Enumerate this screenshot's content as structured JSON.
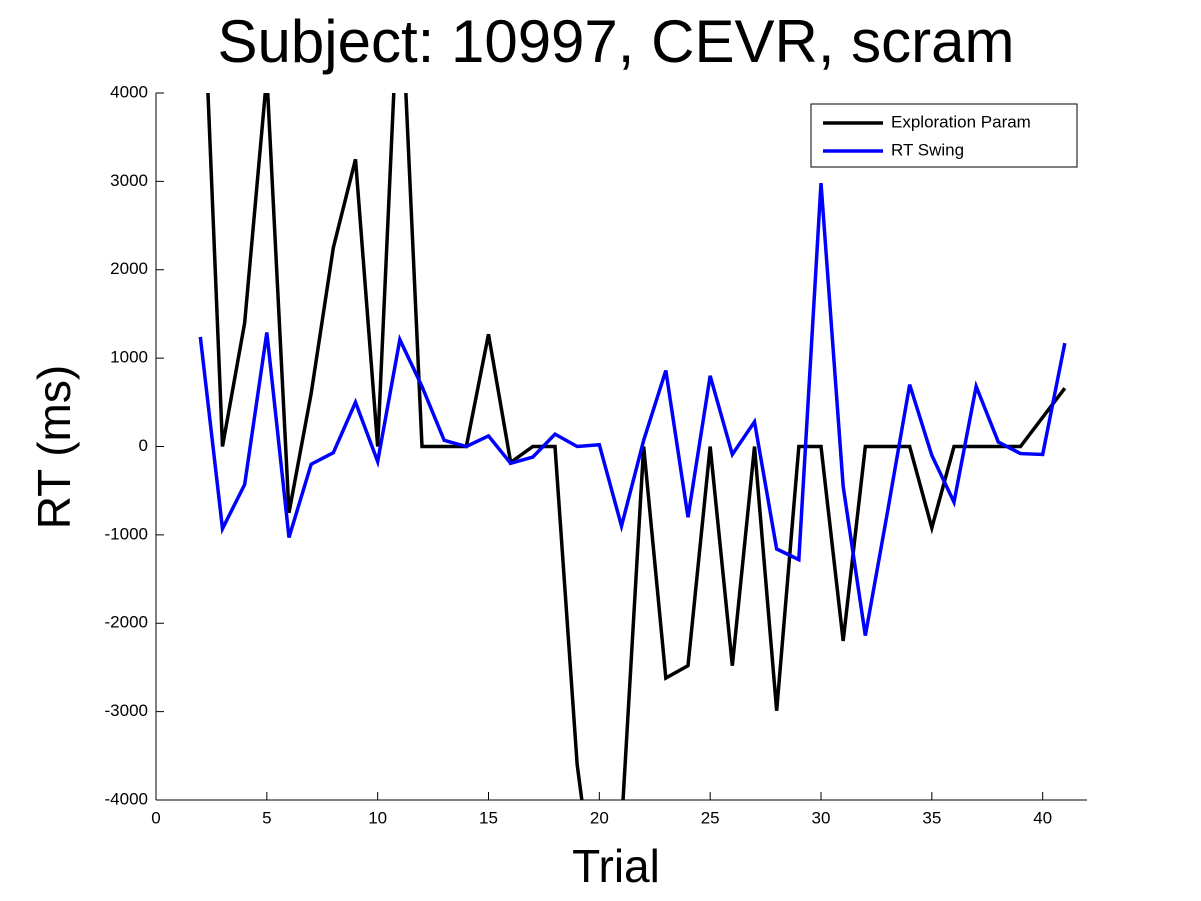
{
  "chart_data": {
    "type": "line",
    "title": "Subject: 10997, CEVR, scram",
    "x_label": "Trial",
    "y_label": "RT (ms)",
    "x": [
      2,
      3,
      4,
      5,
      6,
      7,
      8,
      9,
      10,
      11,
      12,
      13,
      14,
      15,
      16,
      17,
      18,
      19,
      20,
      21,
      22,
      23,
      24,
      25,
      26,
      27,
      28,
      29,
      30,
      31,
      32,
      33,
      34,
      35,
      36,
      37,
      38,
      39,
      40,
      41
    ],
    "series": [
      {
        "name": "Exploration Param",
        "color": "#000000",
        "values": [
          6100,
          0,
          1400,
          4200,
          -750,
          600,
          2250,
          3250,
          0,
          5500,
          0,
          0,
          0,
          1270,
          -180,
          0,
          0,
          -3600,
          -5500,
          -4300,
          0,
          -2620,
          -2480,
          0,
          -2480,
          0,
          -2990,
          0,
          0,
          -2200,
          0,
          0,
          0,
          -920,
          0,
          0,
          0,
          0,
          330,
          660
        ]
      },
      {
        "name": "RT Swing",
        "color": "#0000ff",
        "values": [
          1240,
          -930,
          -430,
          1290,
          -1030,
          -200,
          -70,
          500,
          -170,
          1210,
          680,
          70,
          0,
          120,
          -190,
          -120,
          140,
          0,
          20,
          -900,
          70,
          860,
          -800,
          800,
          -90,
          280,
          -1160,
          -1280,
          2980,
          -450,
          -2140,
          -740,
          700,
          -100,
          -630,
          680,
          50,
          -80,
          -90,
          1170
        ]
      }
    ],
    "xlim": [
      0,
      42
    ],
    "xticks": [
      0,
      5,
      10,
      15,
      20,
      25,
      30,
      35,
      40
    ],
    "ylim": [
      -4000,
      4000
    ],
    "yticks": [
      -4000,
      -3000,
      -2000,
      -1000,
      0,
      1000,
      2000,
      3000,
      4000
    ],
    "legend": "upper right"
  }
}
